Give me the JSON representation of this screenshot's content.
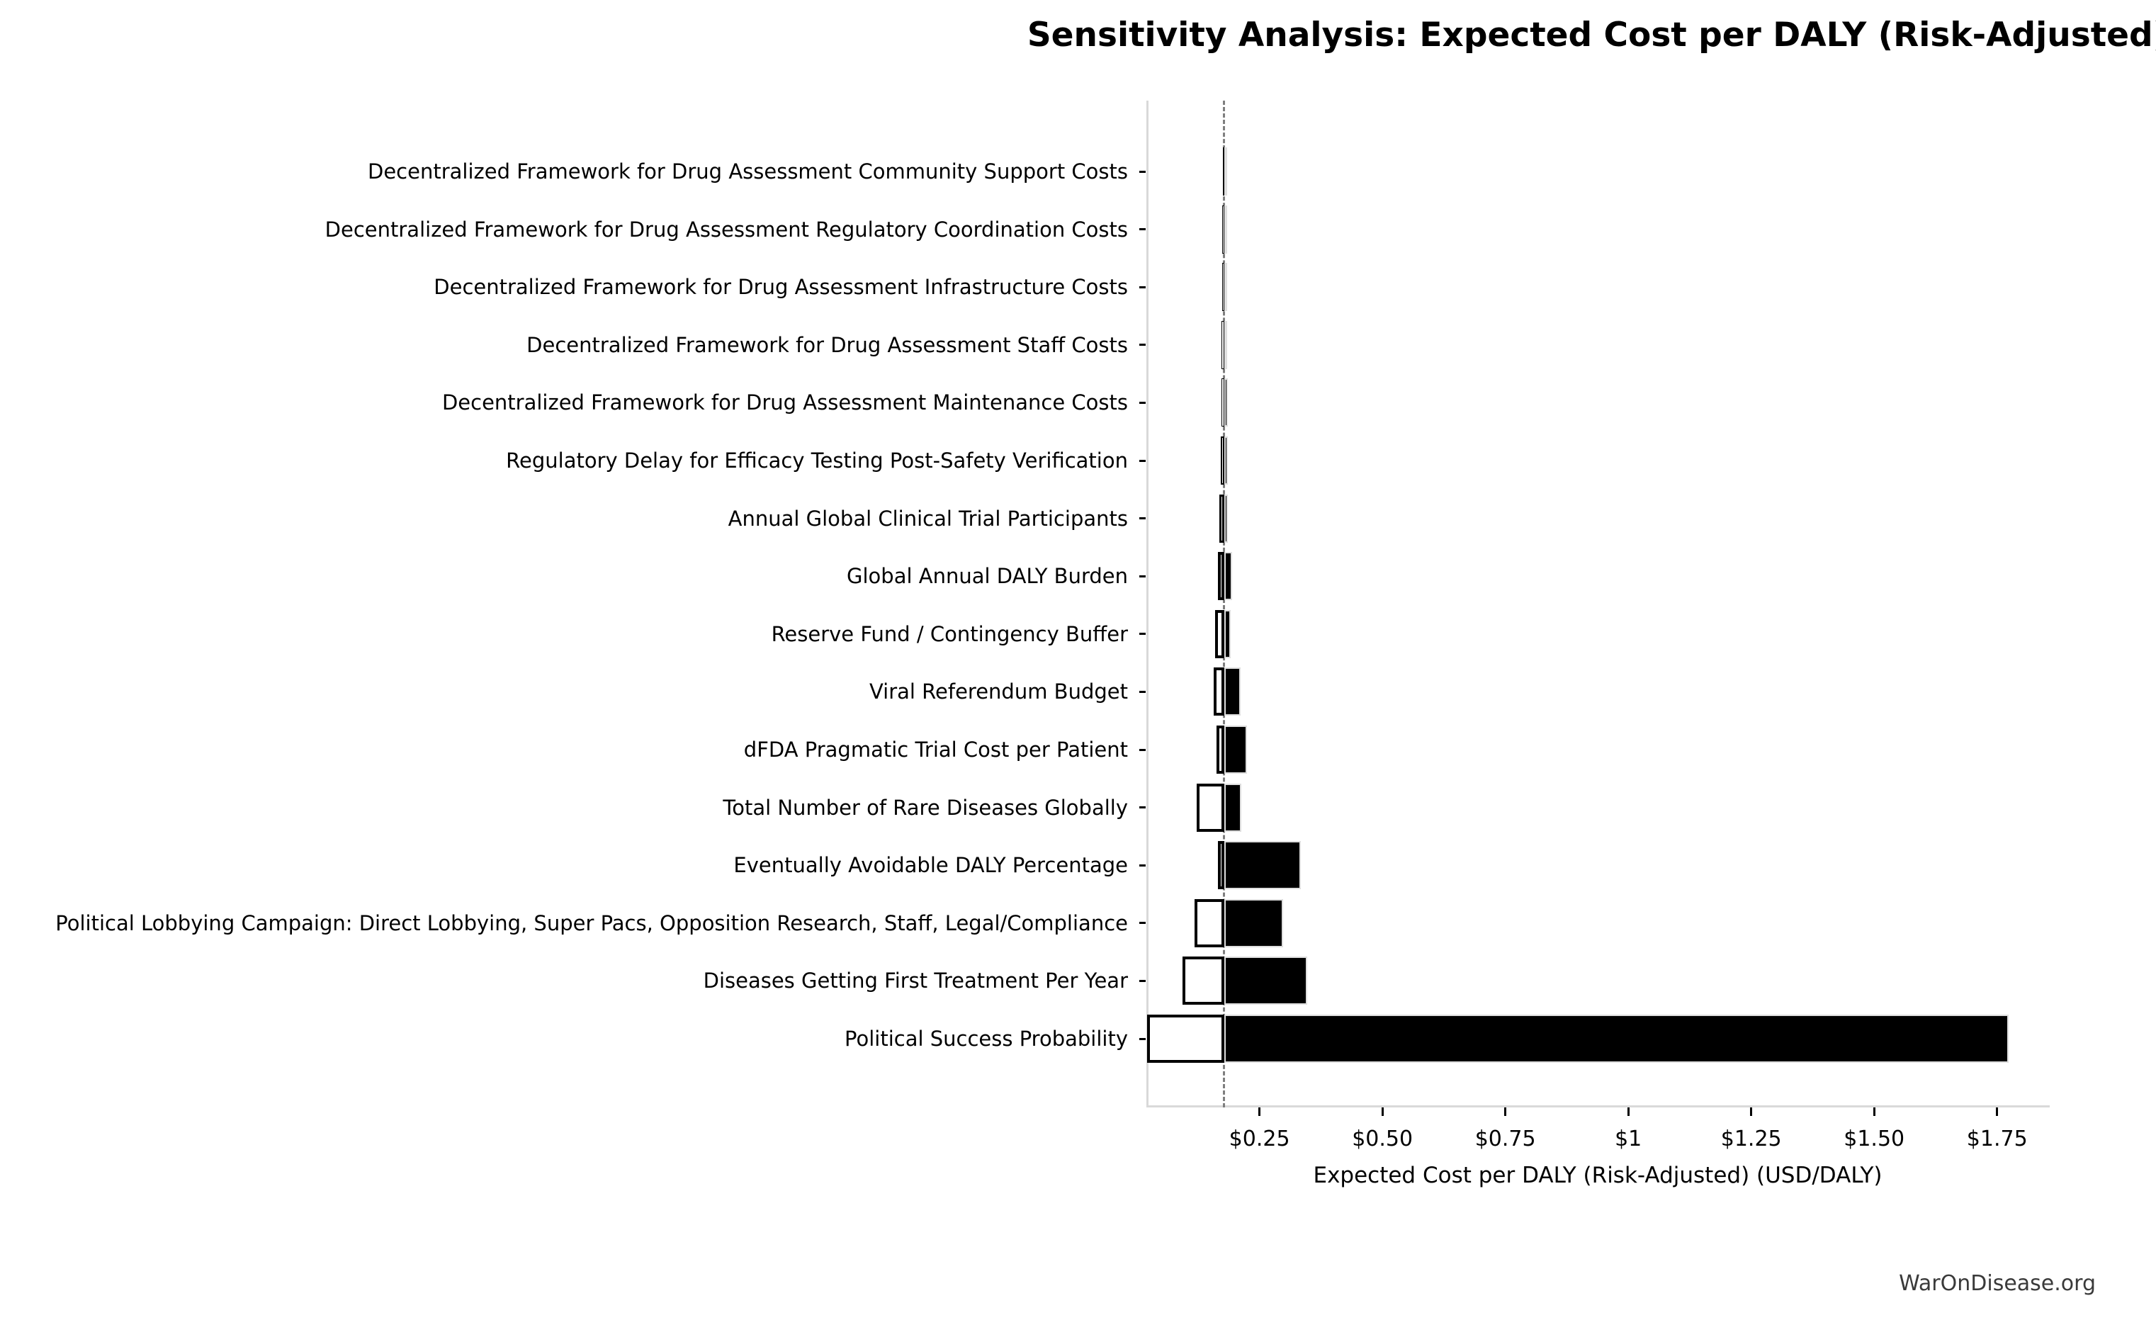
{
  "title": "Sensitivity Analysis: Expected Cost per DALY (Risk-Adjusted)",
  "watermark": "WarOnDisease.org",
  "colors": {
    "bar_high_fill": "#000000",
    "bar_high_edge": "#dedede",
    "bar_low_fill": "#ffffff",
    "bar_low_edge": "#000000",
    "baseline_line": "#7f7f7f",
    "spine": "#d9d9d9",
    "tick": "#000000",
    "text": "#000000",
    "watermark_text": "#3a3a3a"
  },
  "chart_data": {
    "type": "bar",
    "subtype": "tornado-sensitivity",
    "orientation": "horizontal",
    "title": "Sensitivity Analysis: Expected Cost per DALY (Risk-Adjusted)",
    "xlabel": "Expected Cost per DALY (Risk-Adjusted) (USD/DALY)",
    "ylabel": "",
    "legend": "none",
    "grid": false,
    "baseline_value": 0.178,
    "baseline_style": "dashed-gray-vertical",
    "xlim": [
      0.02,
      1.857
    ],
    "xticks": [
      {
        "value": 0.25,
        "label": "$0.25"
      },
      {
        "value": 0.5,
        "label": "$0.50"
      },
      {
        "value": 0.75,
        "label": "$0.75"
      },
      {
        "value": 1.0,
        "label": "$1"
      },
      {
        "value": 1.25,
        "label": "$1.25"
      },
      {
        "value": 1.5,
        "label": "$1.50"
      },
      {
        "value": 1.75,
        "label": "$1.75"
      }
    ],
    "bar_encoding": {
      "low_bar": "white fill, black edge, extends left of baseline",
      "high_bar": "black fill, extends right of baseline"
    },
    "rows": [
      {
        "label": "Decentralized Framework for Drug Assessment Community Support Costs",
        "low": 0.175,
        "high": 0.182
      },
      {
        "label": "Decentralized Framework for Drug Assessment Regulatory Coordination Costs",
        "low": 0.174,
        "high": 0.183
      },
      {
        "label": "Decentralized Framework for Drug Assessment Infrastructure Costs",
        "low": 0.174,
        "high": 0.183
      },
      {
        "label": "Decentralized Framework for Drug Assessment Staff Costs",
        "low": 0.173,
        "high": 0.184
      },
      {
        "label": "Decentralized Framework for Drug Assessment Maintenance Costs",
        "low": 0.173,
        "high": 0.185
      },
      {
        "label": "Regulatory Delay for Efficacy Testing Post-Safety Verification",
        "low": 0.172,
        "high": 0.185
      },
      {
        "label": "Annual Global Clinical Trial Participants",
        "low": 0.169,
        "high": 0.186
      },
      {
        "label": "Global Annual DALY Burden",
        "low": 0.166,
        "high": 0.194
      },
      {
        "label": "Reserve Fund / Contingency Buffer",
        "low": 0.16,
        "high": 0.192
      },
      {
        "label": "Viral Referendum Budget",
        "low": 0.157,
        "high": 0.211
      },
      {
        "label": "dFDA Pragmatic Trial Cost per Patient",
        "low": 0.162,
        "high": 0.224
      },
      {
        "label": "Total Number of Rare Diseases Globally",
        "low": 0.123,
        "high": 0.213
      },
      {
        "label": "Eventually Avoidable DALY Percentage",
        "low": 0.165,
        "high": 0.334
      },
      {
        "label": "Political Lobbying Campaign: Direct Lobbying, Super Pacs, Opposition Research, Staff, Legal/Compliance",
        "low": 0.118,
        "high": 0.298
      },
      {
        "label": "Diseases Getting First Treatment Per Year",
        "low": 0.093,
        "high": 0.347
      },
      {
        "label": "Political Success Probability",
        "low": 0.022,
        "high": 1.773
      }
    ]
  },
  "layout_note": "values in USD per DALY; rows ordered top to bottom as displayed"
}
